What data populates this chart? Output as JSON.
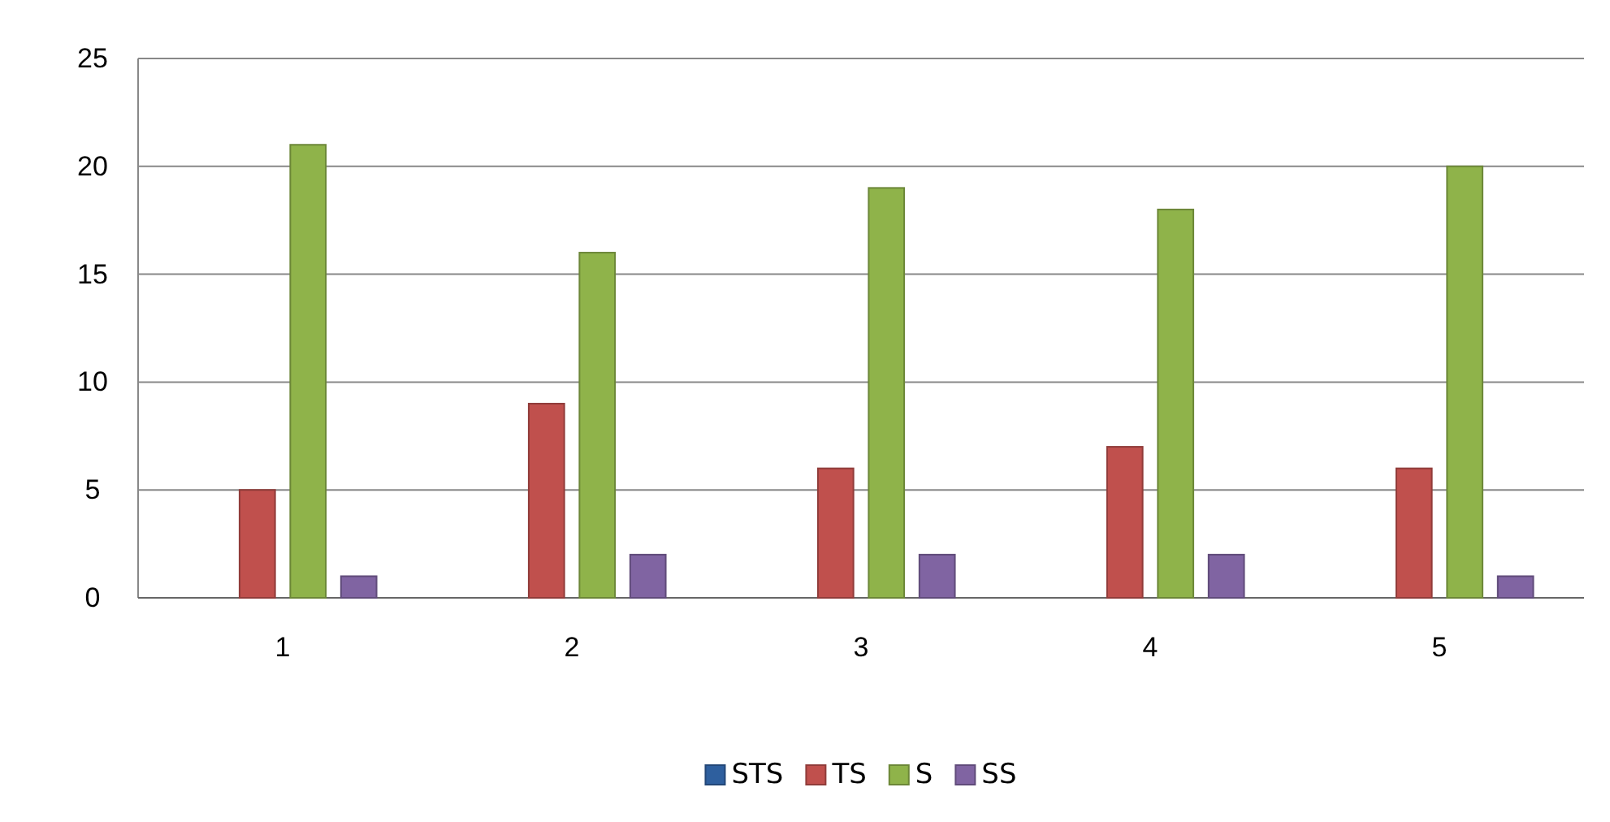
{
  "chart_data": {
    "type": "bar",
    "categories": [
      "1",
      "2",
      "3",
      "4",
      "5"
    ],
    "series": [
      {
        "name": "STS",
        "color": "#2e5f9e",
        "values": [
          0,
          0,
          0,
          0,
          0
        ]
      },
      {
        "name": "TS",
        "color": "#c0504d",
        "values": [
          5,
          9,
          6,
          7,
          6
        ]
      },
      {
        "name": "S",
        "color": "#8fb34a",
        "values": [
          21,
          16,
          19,
          18,
          20
        ]
      },
      {
        "name": "SS",
        "color": "#8064a2",
        "values": [
          1,
          2,
          2,
          2,
          1
        ]
      }
    ],
    "ylim": [
      0,
      25
    ],
    "yticks": [
      0,
      5,
      10,
      15,
      20,
      25
    ],
    "grid": "y",
    "legend": "bottom"
  }
}
